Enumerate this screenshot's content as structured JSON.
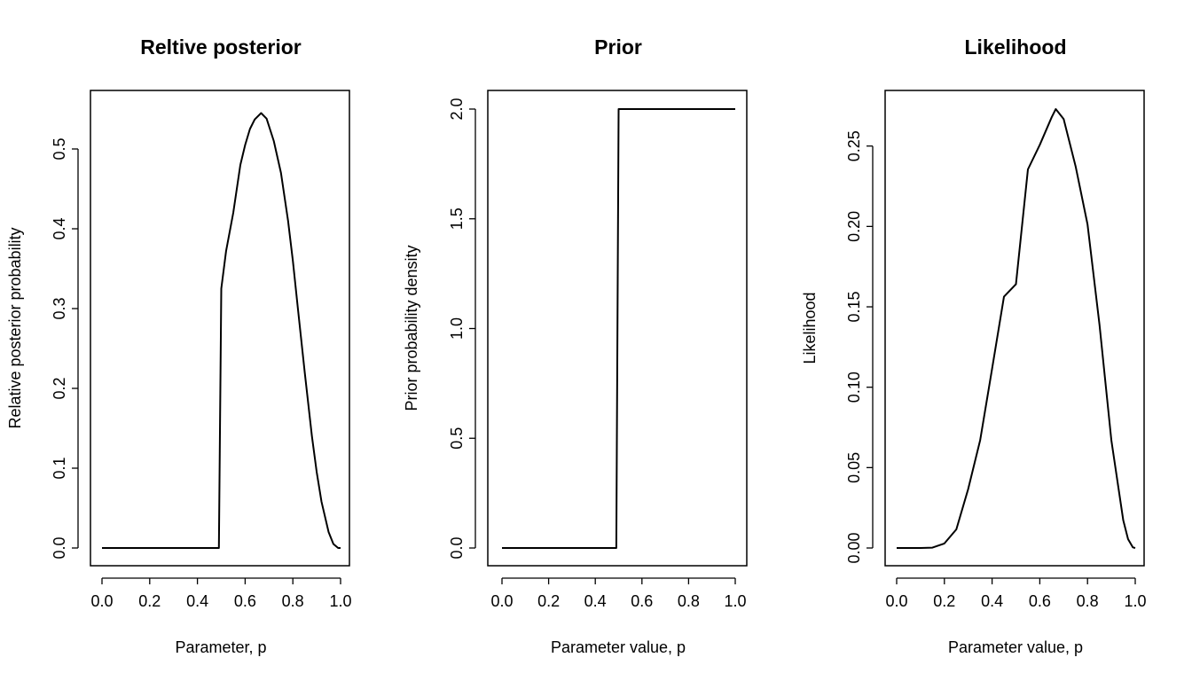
{
  "chart_data": [
    {
      "type": "line",
      "title": "Reltive posterior",
      "xlabel": "Parameter, p",
      "ylabel": "Relative posterior probability",
      "xlim": [
        0,
        1
      ],
      "ylim": [
        0,
        0.55
      ],
      "xticks": [
        "0.0",
        "0.2",
        "0.4",
        "0.6",
        "0.8",
        "1.0"
      ],
      "yticks": [
        "0.0",
        "0.1",
        "0.2",
        "0.3",
        "0.4",
        "0.5"
      ],
      "grid": false,
      "series": [
        {
          "x": [
            0.0,
            0.1,
            0.2,
            0.3,
            0.4,
            0.49,
            0.5,
            0.52,
            0.55,
            0.58,
            0.6,
            0.62,
            0.64,
            0.667,
            0.69,
            0.72,
            0.75,
            0.78,
            0.8,
            0.82,
            0.85,
            0.88,
            0.9,
            0.92,
            0.95,
            0.97,
            0.99,
            1.0
          ],
          "y": [
            0.0,
            0.0,
            0.0,
            0.0,
            0.0,
            0.0,
            0.325,
            0.372,
            0.42,
            0.48,
            0.505,
            0.525,
            0.537,
            0.545,
            0.538,
            0.51,
            0.47,
            0.41,
            0.36,
            0.303,
            0.22,
            0.14,
            0.095,
            0.058,
            0.02,
            0.005,
            0.0,
            0.0
          ]
        }
      ]
    },
    {
      "type": "line",
      "title": "Prior",
      "xlabel": "Parameter value, p",
      "ylabel": "Prior probability density",
      "xlim": [
        0,
        1
      ],
      "ylim": [
        0,
        2.0
      ],
      "xticks": [
        "0.0",
        "0.2",
        "0.4",
        "0.6",
        "0.8",
        "1.0"
      ],
      "yticks": [
        "0.0",
        "0.5",
        "1.0",
        "1.5",
        "2.0"
      ],
      "grid": false,
      "series": [
        {
          "x": [
            0.0,
            0.49,
            0.5,
            1.0
          ],
          "y": [
            0.0,
            0.0,
            2.0,
            2.0
          ]
        }
      ]
    },
    {
      "type": "line",
      "title": "Likelihood",
      "xlabel": "Parameter value, p",
      "ylabel": "Likelihood",
      "xlim": [
        0,
        1
      ],
      "ylim": [
        0,
        0.273
      ],
      "xticks": [
        "0.0",
        "0.2",
        "0.4",
        "0.6",
        "0.8",
        "1.0"
      ],
      "yticks": [
        "0.00",
        "0.05",
        "0.10",
        "0.15",
        "0.20",
        "0.25"
      ],
      "grid": false,
      "series": [
        {
          "x": [
            0.0,
            0.05,
            0.1,
            0.15,
            0.2,
            0.25,
            0.3,
            0.35,
            0.4,
            0.45,
            0.5,
            0.55,
            0.6,
            0.65,
            0.667,
            0.7,
            0.75,
            0.8,
            0.85,
            0.9,
            0.95,
            0.97,
            0.99,
            1.0
          ],
          "y": [
            0.0,
            0.0,
            0.0,
            0.0002,
            0.0028,
            0.0116,
            0.0368,
            0.0672,
            0.1115,
            0.1563,
            0.1641,
            0.2355,
            0.2508,
            0.2679,
            0.273,
            0.2668,
            0.2373,
            0.2013,
            0.1389,
            0.0669,
            0.0172,
            0.0055,
            0.0004,
            0.0
          ]
        }
      ]
    }
  ]
}
